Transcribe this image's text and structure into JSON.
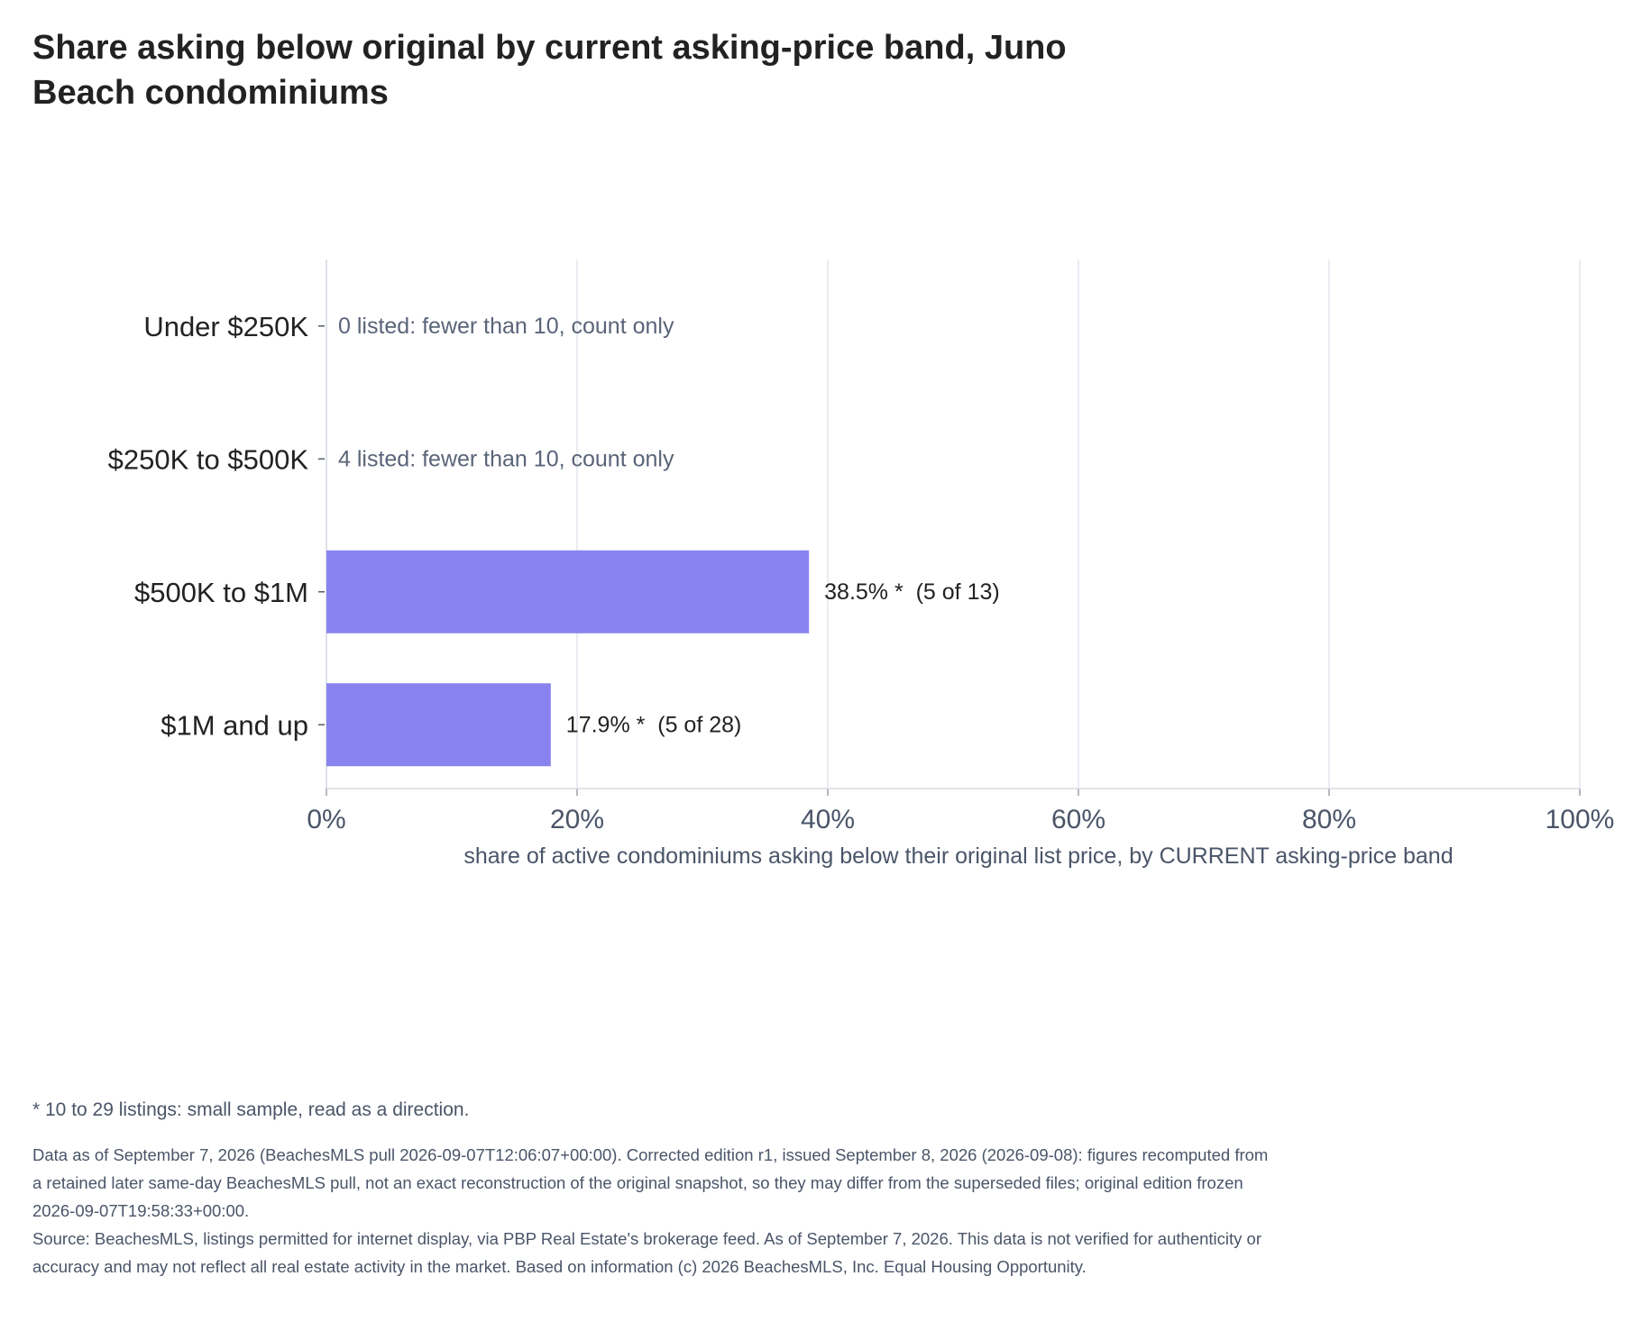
{
  "chart_data": {
    "type": "bar",
    "orientation": "horizontal",
    "title": "Share asking below original by current asking-price band, Juno Beach condominiums",
    "xlabel": "share of active condominiums asking below their original list price, by CURRENT asking-price band",
    "xlim": [
      0,
      100
    ],
    "xticks": [
      "0%",
      "20%",
      "40%",
      "60%",
      "80%",
      "100%"
    ],
    "grid": true,
    "categories": [
      "Under $250K",
      "$250K to $500K",
      "$500K to $1M",
      "$1M and up"
    ],
    "values": [
      null,
      null,
      38.5,
      17.9
    ],
    "data_labels": [
      "0 listed: fewer than 10, count only",
      "4 listed: fewer than 10, count only",
      "38.5% *  (5 of 13)",
      "17.9% *  (5 of 28)"
    ],
    "bar_color": "#8883ee",
    "muted_label_color": "#5a6478"
  },
  "footnote": "* 10 to 29 listings: small sample, read as a direction.",
  "notes": {
    "data_as_of": "Data as of September 7, 2026 (BeachesMLS pull 2026-09-07T12:06:07+00:00). Corrected edition r1, issued September 8, 2026 (2026-09-08): figures recomputed from a retained later same-day BeachesMLS pull, not an exact reconstruction of the original snapshot, so they may differ from the superseded files; original edition frozen 2026-09-07T19:58:33+00:00.",
    "source": "Source: BeachesMLS, listings permitted for internet display, via PBP Real Estate's brokerage feed. As of September 7, 2026. This data is not verified for authenticity or accuracy and may not reflect all real estate activity in the market. Based on information (c) 2026 BeachesMLS, Inc. Equal Housing Opportunity."
  }
}
